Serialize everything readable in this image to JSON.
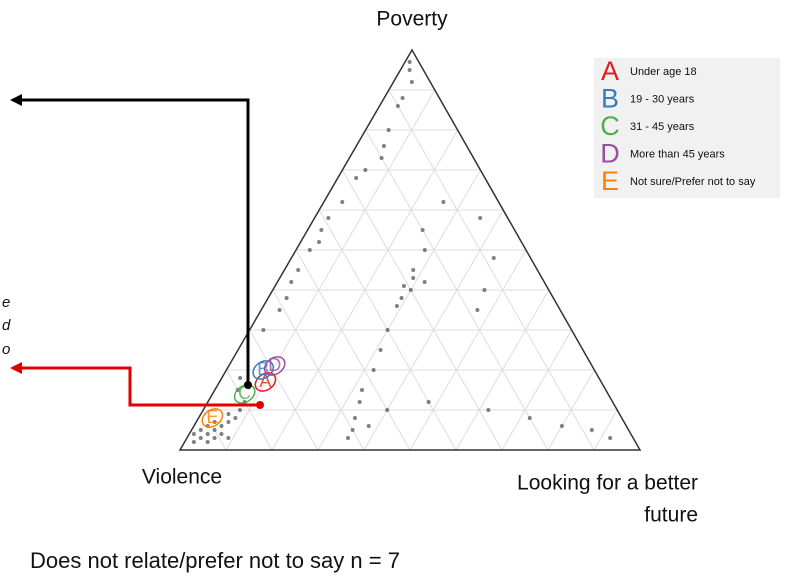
{
  "chart_data": {
    "type": "ternary",
    "axis_labels": {
      "top": "Poverty",
      "left": "Violence",
      "right": [
        "Looking for a better",
        "future"
      ]
    },
    "point_color": "#555555",
    "points": [
      [
        97,
        2,
        1
      ],
      [
        95,
        3,
        2
      ],
      [
        92,
        4,
        4
      ],
      [
        88,
        8,
        4
      ],
      [
        86,
        10,
        4
      ],
      [
        80,
        15,
        5
      ],
      [
        76,
        18,
        6
      ],
      [
        73,
        20,
        7
      ],
      [
        70,
        25,
        5
      ],
      [
        68,
        28,
        4
      ],
      [
        62,
        34,
        4
      ],
      [
        58,
        39,
        3
      ],
      [
        55,
        42,
        3
      ],
      [
        52,
        44,
        4
      ],
      [
        50,
        47,
        3
      ],
      [
        45,
        52,
        3
      ],
      [
        42,
        55,
        3
      ],
      [
        38,
        58,
        4
      ],
      [
        35,
        61,
        4
      ],
      [
        30,
        67,
        3
      ],
      [
        62,
        12,
        26
      ],
      [
        55,
        20,
        25
      ],
      [
        50,
        22,
        28
      ],
      [
        45,
        27,
        28
      ],
      [
        43,
        28,
        29
      ],
      [
        41,
        31,
        28
      ],
      [
        40,
        30,
        30
      ],
      [
        42,
        26,
        32
      ],
      [
        38,
        33,
        29
      ],
      [
        36,
        35,
        29
      ],
      [
        30,
        40,
        30
      ],
      [
        25,
        44,
        31
      ],
      [
        20,
        48,
        32
      ],
      [
        15,
        53,
        32
      ],
      [
        12,
        55,
        33
      ],
      [
        8,
        58,
        34
      ],
      [
        5,
        60,
        35
      ],
      [
        3,
        62,
        35
      ],
      [
        6,
        56,
        38
      ],
      [
        10,
        50,
        40
      ],
      [
        48,
        8,
        44
      ],
      [
        40,
        14,
        46
      ],
      [
        35,
        18,
        47
      ],
      [
        58,
        6,
        36
      ],
      [
        10,
        28,
        62
      ],
      [
        8,
        20,
        72
      ],
      [
        6,
        14,
        80
      ],
      [
        5,
        8,
        87
      ],
      [
        3,
        5,
        92
      ],
      [
        12,
        40,
        48
      ],
      [
        4,
        92,
        4
      ],
      [
        3,
        94,
        3
      ],
      [
        2,
        96,
        2
      ],
      [
        5,
        90,
        5
      ],
      [
        6,
        88,
        6
      ],
      [
        4,
        89,
        7
      ],
      [
        7,
        86,
        7
      ],
      [
        3,
        91,
        6
      ],
      [
        8,
        84,
        8
      ],
      [
        2,
        93,
        5
      ],
      [
        5,
        93,
        2
      ],
      [
        9,
        85,
        6
      ],
      [
        6,
        91,
        3
      ],
      [
        4,
        95,
        1
      ],
      [
        10,
        82,
        8
      ],
      [
        12,
        80,
        8
      ],
      [
        7,
        89,
        4
      ],
      [
        3,
        88,
        9
      ],
      [
        15,
        80,
        5
      ],
      [
        18,
        78,
        4
      ]
    ],
    "groups": [
      {
        "letter": "A",
        "name": "Under age 18",
        "color": "#e41a1c",
        "center": [
          17,
          73,
          10
        ]
      },
      {
        "letter": "B",
        "name": "19 - 30 years",
        "color": "#377eb8",
        "center": [
          20,
          72,
          8
        ]
      },
      {
        "letter": "C",
        "name": "31 - 45 years",
        "color": "#4daf4a",
        "center": [
          14,
          79,
          7
        ]
      },
      {
        "letter": "D",
        "name": "More than 45 years",
        "color": "#984ea3",
        "center": [
          21,
          69,
          10
        ]
      },
      {
        "letter": "E",
        "name": "Not sure/Prefer not to say",
        "color": "#ff7f00",
        "center": [
          8,
          89,
          3
        ]
      }
    ],
    "annotation_fragments": [
      "e",
      "d",
      "o"
    ],
    "footnote": "Does not relate/prefer not to say n = 7"
  }
}
